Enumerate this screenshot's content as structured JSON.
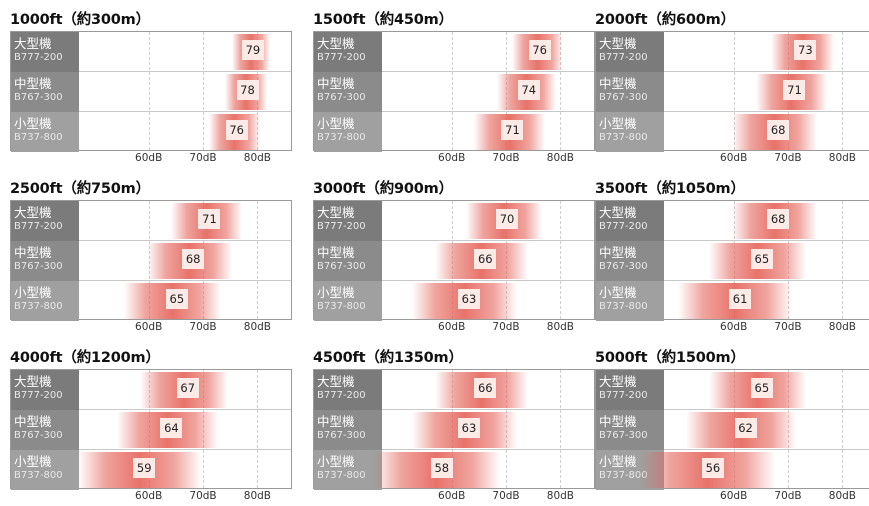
{
  "chart_data": [
    {
      "type": "bar",
      "title": "1000ft（約300m）",
      "x_ticks": [
        "60dB",
        "70dB",
        "80dB"
      ],
      "xlim": [
        47,
        86
      ],
      "categories": [
        {
          "name": "大型機",
          "model": "B777-200"
        },
        {
          "name": "中型機",
          "model": "B767-300"
        },
        {
          "name": "小型機",
          "model": "B737-800"
        }
      ],
      "values": [
        79,
        78,
        76
      ]
    },
    {
      "type": "bar",
      "title": "1500ft（約450m）",
      "x_ticks": [
        "60dB",
        "70dB",
        "80dB"
      ],
      "xlim": [
        47,
        86
      ],
      "categories": [
        {
          "name": "大型機",
          "model": "B777-200"
        },
        {
          "name": "中型機",
          "model": "B767-300"
        },
        {
          "name": "小型機",
          "model": "B737-800"
        }
      ],
      "values": [
        76,
        74,
        71
      ]
    },
    {
      "type": "bar",
      "title": "2000ft（約600m）",
      "x_ticks": [
        "60dB",
        "70dB",
        "80dB"
      ],
      "xlim": [
        47,
        86
      ],
      "categories": [
        {
          "name": "大型機",
          "model": "B777-200"
        },
        {
          "name": "中型機",
          "model": "B767-300"
        },
        {
          "name": "小型機",
          "model": "B737-800"
        }
      ],
      "values": [
        73,
        71,
        68
      ]
    },
    {
      "type": "bar",
      "title": "2500ft（約750m）",
      "x_ticks": [
        "60dB",
        "70dB",
        "80dB"
      ],
      "xlim": [
        47,
        86
      ],
      "categories": [
        {
          "name": "大型機",
          "model": "B777-200"
        },
        {
          "name": "中型機",
          "model": "B767-300"
        },
        {
          "name": "小型機",
          "model": "B737-800"
        }
      ],
      "values": [
        71,
        68,
        65
      ]
    },
    {
      "type": "bar",
      "title": "3000ft（約900m）",
      "x_ticks": [
        "60dB",
        "70dB",
        "80dB"
      ],
      "xlim": [
        47,
        86
      ],
      "categories": [
        {
          "name": "大型機",
          "model": "B777-200"
        },
        {
          "name": "中型機",
          "model": "B767-300"
        },
        {
          "name": "小型機",
          "model": "B737-800"
        }
      ],
      "values": [
        70,
        66,
        63
      ]
    },
    {
      "type": "bar",
      "title": "3500ft（約1050m）",
      "x_ticks": [
        "60dB",
        "70dB",
        "80dB"
      ],
      "xlim": [
        47,
        86
      ],
      "categories": [
        {
          "name": "大型機",
          "model": "B777-200"
        },
        {
          "name": "中型機",
          "model": "B767-300"
        },
        {
          "name": "小型機",
          "model": "B737-800"
        }
      ],
      "values": [
        68,
        65,
        61
      ]
    },
    {
      "type": "bar",
      "title": "4000ft（約1200m）",
      "x_ticks": [
        "60dB",
        "70dB",
        "80dB"
      ],
      "xlim": [
        47,
        86
      ],
      "categories": [
        {
          "name": "大型機",
          "model": "B777-200"
        },
        {
          "name": "中型機",
          "model": "B767-300"
        },
        {
          "name": "小型機",
          "model": "B737-800"
        }
      ],
      "values": [
        67,
        64,
        59
      ]
    },
    {
      "type": "bar",
      "title": "4500ft（約1350m）",
      "x_ticks": [
        "60dB",
        "70dB",
        "80dB"
      ],
      "xlim": [
        47,
        86
      ],
      "categories": [
        {
          "name": "大型機",
          "model": "B777-200"
        },
        {
          "name": "中型機",
          "model": "B767-300"
        },
        {
          "name": "小型機",
          "model": "B737-800"
        }
      ],
      "values": [
        66,
        63,
        58
      ]
    },
    {
      "type": "bar",
      "title": "5000ft（約1500m）",
      "x_ticks": [
        "60dB",
        "70dB",
        "80dB"
      ],
      "xlim": [
        47,
        86
      ],
      "categories": [
        {
          "name": "大型機",
          "model": "B777-200"
        },
        {
          "name": "中型機",
          "model": "B767-300"
        },
        {
          "name": "小型機",
          "model": "B737-800"
        }
      ],
      "values": [
        65,
        62,
        56
      ]
    }
  ],
  "colors": {
    "band": "#e35a50",
    "label_bg": "#fbeae6",
    "row_label_bg": [
      "#7b7b7b",
      "#8b8b8b",
      "#a0a0a0"
    ]
  }
}
